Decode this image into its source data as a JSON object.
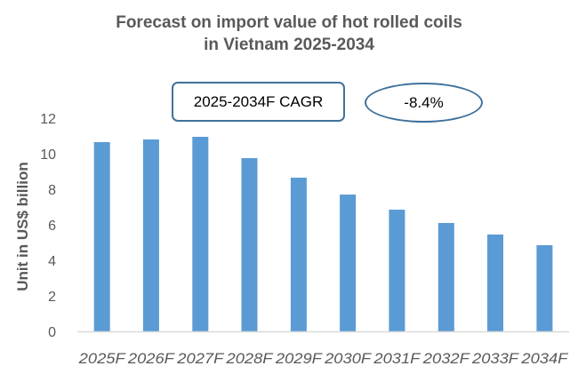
{
  "chart_data": {
    "type": "bar",
    "title": [
      "Forecast on import value of hot rolled coils",
      "in Vietnam 2025-2034"
    ],
    "xlabel": "",
    "ylabel": "Unit in US$ billion",
    "ylim": [
      0,
      12
    ],
    "yticks": [
      0,
      2,
      4,
      6,
      8,
      10,
      12
    ],
    "grid": false,
    "categories": [
      "2025F",
      "2026F",
      "2027F",
      "2028F",
      "2029F",
      "2030F",
      "2031F",
      "2032F",
      "2033F",
      "2034F"
    ],
    "values": [
      10.65,
      10.8,
      10.95,
      9.75,
      8.65,
      7.7,
      6.85,
      6.1,
      5.45,
      4.85
    ],
    "bar_color": "#5b9bd5",
    "annotations": {
      "cagr_label": "2025-2034F CAGR",
      "cagr_value": "-8.4%"
    }
  },
  "colors": {
    "text": "#595959",
    "axis": "#d9d9d9",
    "annotation_border": "#41719c"
  }
}
